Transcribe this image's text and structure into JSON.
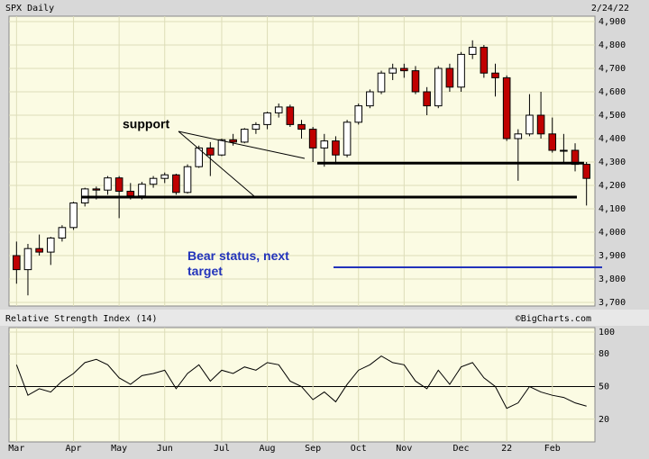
{
  "chart_data": {
    "type": "candlestick",
    "title": "SPX Daily",
    "date": "2/24/22",
    "source": "©BigCharts.com",
    "categories": [
      "Mar",
      null,
      null,
      null,
      null,
      "Apr",
      null,
      null,
      null,
      "May",
      null,
      null,
      null,
      "Jun",
      null,
      null,
      null,
      null,
      "Jul",
      null,
      null,
      null,
      "Aug",
      null,
      null,
      null,
      "Sep",
      null,
      null,
      null,
      "Oct",
      null,
      null,
      null,
      "Nov",
      null,
      null,
      null,
      null,
      "Dec",
      null,
      null,
      null,
      "22",
      null,
      null,
      null,
      "Feb",
      null,
      null,
      null
    ],
    "ohlc": [
      [
        3900,
        3960,
        3780,
        3840
      ],
      [
        3840,
        3950,
        3730,
        3930
      ],
      [
        3930,
        3990,
        3900,
        3915
      ],
      [
        3915,
        3980,
        3860,
        3975
      ],
      [
        3975,
        4030,
        3960,
        4020
      ],
      [
        4020,
        4130,
        4010,
        4125
      ],
      [
        4125,
        4190,
        4110,
        4185
      ],
      [
        4185,
        4195,
        4140,
        4180
      ],
      [
        4180,
        4240,
        4160,
        4232
      ],
      [
        4232,
        4240,
        4060,
        4175
      ],
      [
        4175,
        4210,
        4140,
        4155
      ],
      [
        4155,
        4215,
        4140,
        4205
      ],
      [
        4205,
        4240,
        4190,
        4230
      ],
      [
        4230,
        4255,
        4210,
        4245
      ],
      [
        4245,
        4250,
        4160,
        4170
      ],
      [
        4170,
        4290,
        4165,
        4280
      ],
      [
        4280,
        4370,
        4275,
        4360
      ],
      [
        4360,
        4385,
        4240,
        4330
      ],
      [
        4330,
        4400,
        4325,
        4395
      ],
      [
        4395,
        4420,
        4370,
        4385
      ],
      [
        4385,
        4445,
        4380,
        4440
      ],
      [
        4440,
        4470,
        4420,
        4460
      ],
      [
        4460,
        4515,
        4440,
        4510
      ],
      [
        4510,
        4550,
        4490,
        4535
      ],
      [
        4535,
        4545,
        4450,
        4460
      ],
      [
        4460,
        4480,
        4400,
        4440
      ],
      [
        4440,
        4450,
        4300,
        4360
      ],
      [
        4360,
        4420,
        4280,
        4390
      ],
      [
        4390,
        4410,
        4290,
        4330
      ],
      [
        4330,
        4480,
        4320,
        4470
      ],
      [
        4470,
        4550,
        4460,
        4540
      ],
      [
        4540,
        4610,
        4530,
        4600
      ],
      [
        4600,
        4690,
        4590,
        4680
      ],
      [
        4680,
        4720,
        4650,
        4700
      ],
      [
        4700,
        4720,
        4660,
        4690
      ],
      [
        4690,
        4710,
        4590,
        4600
      ],
      [
        4600,
        4620,
        4500,
        4540
      ],
      [
        4540,
        4710,
        4530,
        4700
      ],
      [
        4700,
        4720,
        4600,
        4620
      ],
      [
        4620,
        4770,
        4600,
        4760
      ],
      [
        4760,
        4820,
        4740,
        4790
      ],
      [
        4790,
        4800,
        4660,
        4680
      ],
      [
        4680,
        4720,
        4580,
        4660
      ],
      [
        4660,
        4670,
        4390,
        4400
      ],
      [
        4400,
        4440,
        4220,
        4420
      ],
      [
        4420,
        4590,
        4410,
        4500
      ],
      [
        4500,
        4600,
        4400,
        4420
      ],
      [
        4420,
        4490,
        4340,
        4350
      ],
      [
        4350,
        4420,
        4300,
        4350
      ],
      [
        4350,
        4380,
        4260,
        4290
      ],
      [
        4290,
        4300,
        4114,
        4230
      ]
    ],
    "up_color": "#ffffff",
    "down_color": "#c00000",
    "ylim": [
      3700,
      4900
    ],
    "yticks": [
      {
        "value": 3700,
        "label": "3,700"
      },
      {
        "value": 3800,
        "label": "3,800"
      },
      {
        "value": 3900,
        "label": "3,900"
      },
      {
        "value": 4000,
        "label": "4,000"
      },
      {
        "value": 4100,
        "label": "4,100"
      },
      {
        "value": 4200,
        "label": "4,200"
      },
      {
        "value": 4300,
        "label": "4,300"
      },
      {
        "value": 4400,
        "label": "4,400"
      },
      {
        "value": 4500,
        "label": "4,500"
      },
      {
        "value": 4600,
        "label": "4,600"
      },
      {
        "value": 4700,
        "label": "4,700"
      },
      {
        "value": 4800,
        "label": "4,800"
      },
      {
        "value": 4900,
        "label": "4,900"
      }
    ],
    "grid": true,
    "hlines": [
      {
        "value": 4150,
        "color": "#000000"
      },
      {
        "value": 4295,
        "color": "#000000"
      },
      {
        "value": 3850,
        "color": "#2233bb"
      }
    ],
    "annotations": [
      "support",
      "Bear status, next target"
    ],
    "rsi": {
      "title": "Relative Strength Index (14)",
      "color": "#000000",
      "ylim": [
        0,
        100
      ],
      "yticks": [
        20,
        50,
        80,
        100
      ],
      "midline": 50,
      "values": [
        70,
        42,
        48,
        45,
        55,
        62,
        72,
        75,
        70,
        58,
        52,
        60,
        62,
        65,
        48,
        62,
        70,
        55,
        65,
        62,
        68,
        65,
        72,
        70,
        55,
        50,
        38,
        45,
        36,
        52,
        65,
        70,
        78,
        72,
        70,
        55,
        48,
        65,
        52,
        68,
        72,
        58,
        50,
        30,
        35,
        50,
        45,
        42,
        40,
        35,
        32
      ]
    }
  }
}
